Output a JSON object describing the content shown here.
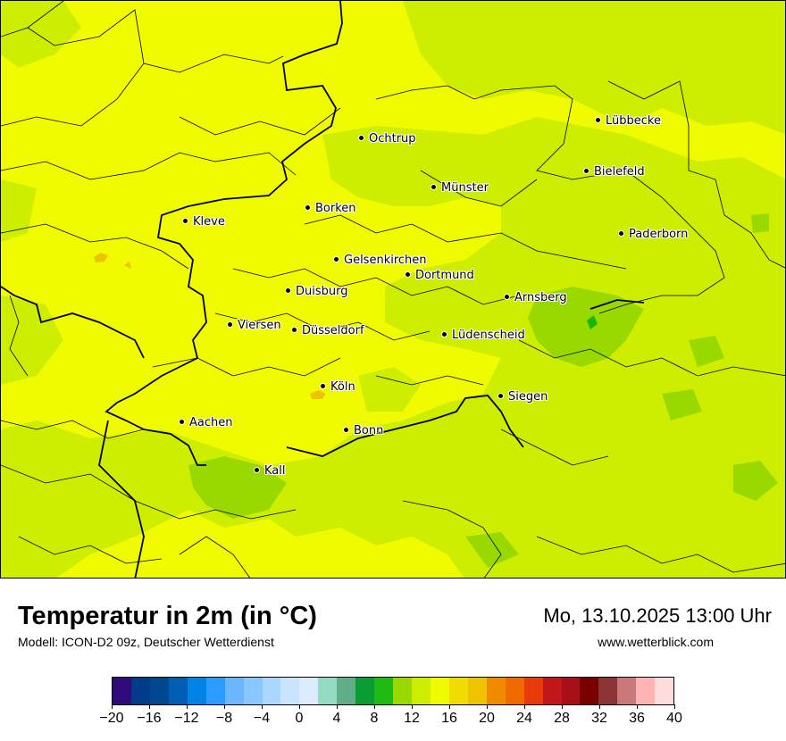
{
  "map": {
    "cities": [
      {
        "name": "Ochtrup"
      },
      {
        "name": "Lübbecke"
      },
      {
        "name": "Bielefeld"
      },
      {
        "name": "Münster"
      },
      {
        "name": "Borken"
      },
      {
        "name": "Kleve"
      },
      {
        "name": "Paderborn"
      },
      {
        "name": "Gelsenkirchen"
      },
      {
        "name": "Dortmund"
      },
      {
        "name": "Duisburg"
      },
      {
        "name": "Arnsberg"
      },
      {
        "name": "Viersen"
      },
      {
        "name": "Düsseldorf"
      },
      {
        "name": "Lüdenscheid"
      },
      {
        "name": "Köln"
      },
      {
        "name": "Siegen"
      },
      {
        "name": "Aachen"
      },
      {
        "name": "Bonn"
      },
      {
        "name": "Kall"
      }
    ],
    "colors": {
      "base": "#f0fb00",
      "light_green": "#cdee00",
      "green": "#9ad900",
      "dark_green": "#1ab800",
      "orange": "#f0c300"
    }
  },
  "header": {
    "title": "Temperatur in 2m (in °C)",
    "model": "Modell: ICON-D2 09z, Deutscher Wetterdienst",
    "datetime": "Mo, 13.10.2025 13:00 Uhr",
    "website": "www.wetterblick.com"
  },
  "legend": {
    "colors": [
      "#2e0a7a",
      "#003c8a",
      "#00478f",
      "#005fb4",
      "#0082e6",
      "#2b9bff",
      "#6ab6ff",
      "#8ac6ff",
      "#abd6ff",
      "#c8e4ff",
      "#dbecff",
      "#94dcc1",
      "#5fae88",
      "#0b9b34",
      "#1fbb14",
      "#9ad900",
      "#cdee00",
      "#f0fb00",
      "#f0dc00",
      "#f0c300",
      "#f08a00",
      "#f06a00",
      "#e83a0a",
      "#c2181b",
      "#a80f18",
      "#7a0000",
      "#8c3434",
      "#c87878",
      "#ffb4b4",
      "#ffdcdc"
    ],
    "ticks": [
      "−20",
      "−16",
      "−12",
      "−8",
      "−4",
      "0",
      "4",
      "8",
      "12",
      "16",
      "20",
      "24",
      "28",
      "32",
      "36",
      "40"
    ]
  }
}
